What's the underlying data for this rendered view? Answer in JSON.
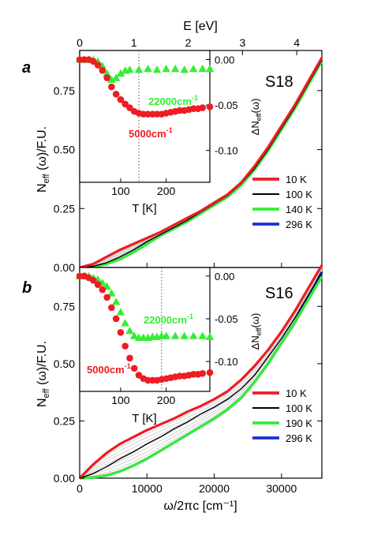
{
  "figure": {
    "top_axis_label": "E [eV]",
    "top_ticks": [
      "0",
      "1",
      "2",
      "3",
      "4"
    ],
    "top_tick_values": [
      0,
      1,
      2,
      3,
      4
    ],
    "xlabel": "ω/2πc [cm⁻¹]",
    "x_ticks": [
      "0",
      "10000",
      "20000",
      "30000"
    ],
    "x_tick_values": [
      0,
      10000,
      20000,
      30000
    ],
    "xlim": [
      0,
      36000
    ],
    "ylabel_main": "N",
    "ylabel_sub": "eff",
    "ylabel_rest": " (ω)/F.U.",
    "y_ticks": [
      "0.00",
      "0.25",
      "0.50",
      "0.75"
    ],
    "y_tick_values": [
      0,
      0.25,
      0.5,
      0.75
    ],
    "ylim": [
      0,
      0.92
    ],
    "inset_xlabel": "T [K]",
    "inset_x_ticks": [
      "100",
      "200"
    ],
    "inset_x_tick_values": [
      100,
      200
    ],
    "inset_xlim": [
      10,
      296
    ],
    "inset_ylabel_main": "ΔN",
    "inset_ylabel_sub": "eff",
    "inset_ylabel_rest": "(ω)",
    "inset_y_ticks": [
      "0.00",
      "-0.05",
      "-0.10"
    ],
    "inset_y_tick_values": [
      0,
      -0.05,
      -0.1
    ],
    "inset_ylim": [
      -0.135,
      0.01
    ]
  },
  "colors": {
    "10K": "#ee1c24",
    "100K": "#000000",
    "140K": "#33ee33",
    "190K": "#33ee33",
    "296K": "#1c2fd6",
    "grey": "#c8c8c8"
  },
  "chart_data": [
    {
      "type": "line",
      "panel_label": "a",
      "sample_label": "S18",
      "x": [
        0,
        2000,
        4000,
        6000,
        8000,
        10000,
        12000,
        14000,
        16000,
        18000,
        20000,
        22000,
        24000,
        26000,
        28000,
        30000,
        32000,
        34000,
        36000
      ],
      "series": [
        {
          "name": "10 K",
          "color": "#ee1c24",
          "values": [
            0,
            0.015,
            0.045,
            0.075,
            0.1,
            0.125,
            0.15,
            0.18,
            0.21,
            0.24,
            0.275,
            0.31,
            0.36,
            0.43,
            0.51,
            0.6,
            0.69,
            0.79,
            0.89
          ]
        },
        {
          "name": "100 K",
          "color": "#000000",
          "values": [
            0,
            0.005,
            0.02,
            0.045,
            0.075,
            0.11,
            0.14,
            0.17,
            0.2,
            0.235,
            0.27,
            0.305,
            0.355,
            0.42,
            0.5,
            0.59,
            0.68,
            0.78,
            0.88
          ]
        },
        {
          "name": "140 K",
          "color": "#33ee33",
          "values": [
            0,
            0.003,
            0.015,
            0.035,
            0.065,
            0.1,
            0.135,
            0.165,
            0.195,
            0.23,
            0.265,
            0.3,
            0.35,
            0.415,
            0.495,
            0.585,
            0.675,
            0.775,
            0.875
          ]
        },
        {
          "name": "296 K",
          "color": "#1c2fd6",
          "values": [
            0,
            0.003,
            0.015,
            0.035,
            0.065,
            0.1,
            0.135,
            0.165,
            0.195,
            0.23,
            0.265,
            0.3,
            0.35,
            0.415,
            0.495,
            0.585,
            0.675,
            0.775,
            0.88
          ]
        }
      ],
      "inset": {
        "series": [
          {
            "name": "22000cm⁻¹",
            "color": "#33ee33",
            "marker": "triangle",
            "x": [
              10,
              20,
              30,
              40,
              50,
              60,
              70,
              80,
              90,
              100,
              110,
              120,
              140,
              160,
              180,
              200,
              220,
              240,
              260,
              280,
              296
            ],
            "y": [
              0.0,
              0.0,
              0.0,
              0.0,
              -0.002,
              -0.007,
              -0.015,
              -0.022,
              -0.02,
              -0.015,
              -0.012,
              -0.011,
              -0.011,
              -0.01,
              -0.011,
              -0.01,
              -0.01,
              -0.011,
              -0.01,
              -0.01,
              -0.01
            ]
          },
          {
            "name": "5000cm⁻¹",
            "color": "#ee1c24",
            "marker": "circle",
            "x": [
              10,
              20,
              30,
              40,
              50,
              60,
              70,
              80,
              90,
              100,
              110,
              120,
              130,
              140,
              150,
              160,
              170,
              180,
              190,
              200,
              210,
              220,
              230,
              240,
              250,
              260,
              270,
              280,
              296
            ],
            "y": [
              0.0,
              0.0,
              0.0,
              -0.002,
              -0.006,
              -0.012,
              -0.02,
              -0.03,
              -0.038,
              -0.044,
              -0.049,
              -0.053,
              -0.057,
              -0.059,
              -0.06,
              -0.06,
              -0.06,
              -0.06,
              -0.06,
              -0.059,
              -0.058,
              -0.057,
              -0.056,
              -0.056,
              -0.055,
              -0.054,
              -0.054,
              -0.053,
              -0.052
            ]
          }
        ],
        "vline_T": 140
      }
    },
    {
      "type": "line",
      "panel_label": "b",
      "sample_label": "S16",
      "x": [
        0,
        2000,
        4000,
        6000,
        8000,
        10000,
        12000,
        14000,
        16000,
        18000,
        20000,
        22000,
        24000,
        26000,
        28000,
        30000,
        32000,
        34000,
        36000
      ],
      "series": [
        {
          "name": "10 K",
          "color": "#ee1c24",
          "values": [
            0,
            0.06,
            0.11,
            0.15,
            0.18,
            0.21,
            0.235,
            0.26,
            0.29,
            0.315,
            0.345,
            0.38,
            0.43,
            0.49,
            0.56,
            0.64,
            0.73,
            0.83,
            0.93
          ]
        },
        {
          "name": "100 K",
          "color": "#000000",
          "values": [
            0,
            0.02,
            0.05,
            0.085,
            0.115,
            0.15,
            0.18,
            0.215,
            0.245,
            0.28,
            0.31,
            0.345,
            0.39,
            0.45,
            0.53,
            0.61,
            0.7,
            0.8,
            0.9
          ]
        },
        {
          "name": "190 K",
          "color": "#33ee33",
          "values": [
            0,
            0.003,
            0.012,
            0.03,
            0.055,
            0.085,
            0.12,
            0.155,
            0.19,
            0.225,
            0.26,
            0.3,
            0.35,
            0.42,
            0.5,
            0.59,
            0.68,
            0.78,
            0.88
          ]
        },
        {
          "name": "296 K",
          "color": "#1c2fd6",
          "values": [
            0,
            0.003,
            0.012,
            0.03,
            0.055,
            0.085,
            0.12,
            0.155,
            0.19,
            0.225,
            0.26,
            0.3,
            0.35,
            0.42,
            0.5,
            0.59,
            0.68,
            0.79,
            0.9
          ]
        }
      ],
      "inset": {
        "series": [
          {
            "name": "22000cm⁻¹",
            "color": "#33ee33",
            "marker": "triangle",
            "x": [
              10,
              20,
              30,
              40,
              50,
              60,
              70,
              80,
              90,
              100,
              110,
              120,
              130,
              140,
              150,
              160,
              170,
              180,
              190,
              200,
              220,
              240,
              260,
              280,
              296
            ],
            "y": [
              0.0,
              0.0,
              0.0,
              -0.002,
              -0.004,
              -0.008,
              -0.012,
              -0.02,
              -0.03,
              -0.042,
              -0.055,
              -0.064,
              -0.07,
              -0.072,
              -0.072,
              -0.072,
              -0.071,
              -0.071,
              -0.07,
              -0.07,
              -0.07,
              -0.07,
              -0.07,
              -0.07,
              -0.071
            ]
          },
          {
            "name": "5000cm⁻¹",
            "color": "#ee1c24",
            "marker": "circle",
            "x": [
              10,
              20,
              30,
              40,
              50,
              60,
              70,
              80,
              90,
              100,
              110,
              120,
              130,
              140,
              150,
              160,
              170,
              180,
              190,
              200,
              210,
              220,
              230,
              240,
              250,
              260,
              270,
              280,
              296
            ],
            "y": [
              0.0,
              0.0,
              -0.002,
              -0.005,
              -0.01,
              -0.016,
              -0.025,
              -0.037,
              -0.05,
              -0.066,
              -0.082,
              -0.096,
              -0.108,
              -0.116,
              -0.12,
              -0.122,
              -0.122,
              -0.122,
              -0.121,
              -0.12,
              -0.119,
              -0.118,
              -0.117,
              -0.117,
              -0.116,
              -0.115,
              -0.115,
              -0.114,
              -0.113
            ]
          }
        ],
        "vline_T": 190
      }
    }
  ]
}
